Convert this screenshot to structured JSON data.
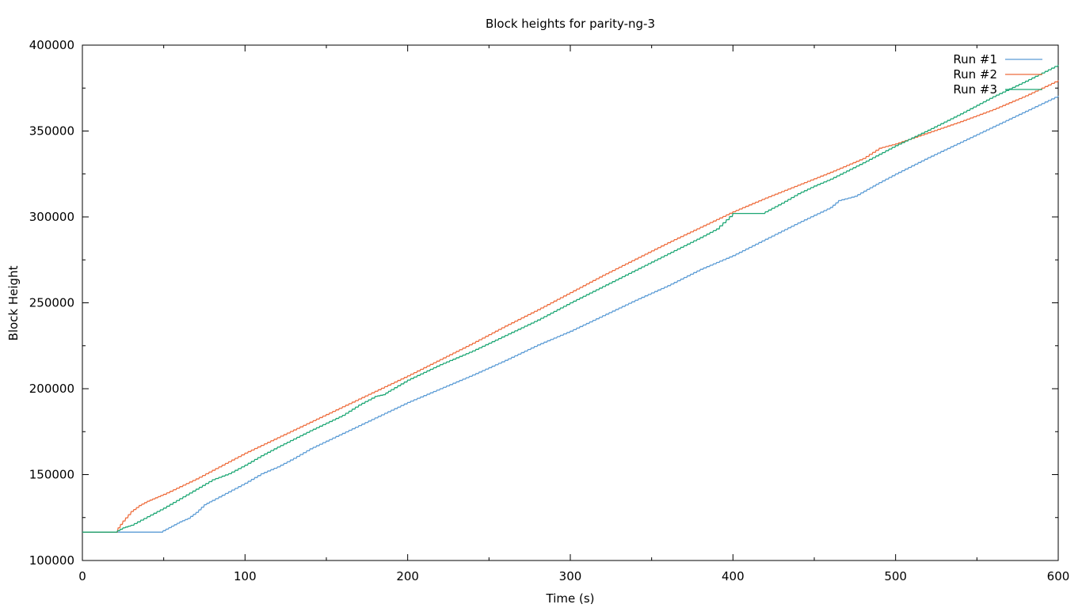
{
  "chart_data": {
    "type": "line",
    "title": "Block heights for parity-ng-3",
    "xlabel": "Time (s)",
    "ylabel": "Block Height",
    "xlim": [
      0,
      600
    ],
    "ylim": [
      100000,
      400000
    ],
    "x_ticks": [
      0,
      100,
      200,
      300,
      400,
      500,
      600
    ],
    "y_ticks": [
      100000,
      150000,
      200000,
      250000,
      300000,
      350000,
      400000
    ],
    "x_tick_labels": [
      "0",
      "100",
      "200",
      "300",
      "400",
      "500",
      "600"
    ],
    "y_tick_labels": [
      "100000",
      "150000",
      "200000",
      "250000",
      "300000",
      "350000",
      "400000"
    ],
    "grid": false,
    "legend_position": "top-right",
    "series": [
      {
        "name": "Run #1",
        "color": "#5a9bd5",
        "x": [
          0,
          20,
          40,
          48,
          55,
          60,
          65,
          70,
          75,
          80,
          90,
          100,
          110,
          120,
          130,
          140,
          150,
          160,
          170,
          180,
          190,
          200,
          220,
          240,
          260,
          280,
          300,
          320,
          340,
          360,
          380,
          400,
          420,
          440,
          460,
          465,
          475,
          490,
          500,
          520,
          540,
          560,
          580,
          600
        ],
        "y": [
          116500,
          116500,
          116500,
          116500,
          120000,
          122500,
          124500,
          128000,
          132500,
          135000,
          140000,
          145000,
          150500,
          154500,
          159500,
          165000,
          169500,
          174000,
          178500,
          183000,
          187500,
          192000,
          200000,
          208000,
          216500,
          225500,
          233500,
          242500,
          251500,
          260000,
          269500,
          277500,
          287000,
          296500,
          305500,
          309500,
          312000,
          320000,
          325000,
          334500,
          343500,
          352500,
          361500,
          370500
        ]
      },
      {
        "name": "Run #2",
        "color": "#ee6c3c",
        "x": [
          0,
          20,
          22,
          25,
          30,
          35,
          40,
          45,
          50,
          60,
          70,
          80,
          90,
          100,
          110,
          120,
          140,
          160,
          180,
          200,
          220,
          240,
          260,
          280,
          300,
          320,
          340,
          360,
          380,
          400,
          420,
          440,
          460,
          480,
          490,
          500,
          520,
          540,
          560,
          580,
          600
        ],
        "y": [
          116500,
          116500,
          119000,
          123000,
          128500,
          132000,
          134500,
          136500,
          138500,
          143000,
          147500,
          152500,
          157500,
          162500,
          167000,
          171500,
          180500,
          189500,
          198500,
          207500,
          217000,
          226500,
          236500,
          246000,
          256000,
          266000,
          275500,
          285000,
          294000,
          303000,
          311000,
          318500,
          326000,
          334000,
          340000,
          342500,
          349000,
          355500,
          362500,
          370500,
          379500
        ]
      },
      {
        "name": "Run #3",
        "color": "#1ba673",
        "x": [
          0,
          20,
          25,
          30,
          40,
          50,
          60,
          70,
          80,
          90,
          100,
          110,
          120,
          140,
          160,
          170,
          180,
          185,
          190,
          200,
          220,
          240,
          260,
          280,
          300,
          320,
          340,
          360,
          380,
          390,
          400,
          418,
          430,
          440,
          450,
          460,
          480,
          500,
          520,
          540,
          560,
          580,
          600
        ],
        "y": [
          116500,
          116500,
          119000,
          120500,
          125500,
          130500,
          136000,
          141500,
          147000,
          150500,
          155500,
          161000,
          166000,
          175500,
          184500,
          190500,
          195500,
          196500,
          199500,
          205000,
          214000,
          222000,
          231000,
          240000,
          250000,
          259500,
          269000,
          278500,
          288000,
          293000,
          302000,
          302000,
          308000,
          313500,
          318000,
          322000,
          331500,
          341500,
          350500,
          360000,
          370000,
          379000,
          388500
        ]
      }
    ]
  }
}
